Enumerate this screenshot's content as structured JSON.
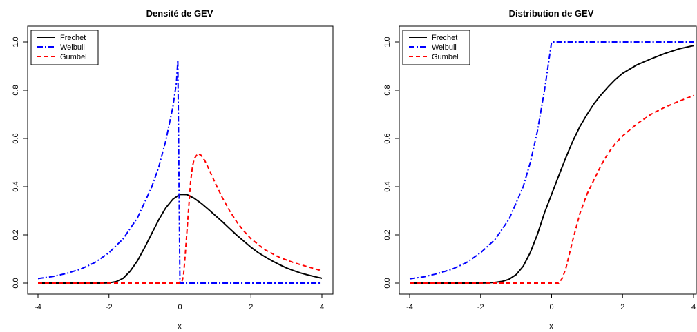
{
  "chart_data": [
    {
      "type": "line",
      "title": "Densité de GEV",
      "xlabel": "x",
      "ylabel": "",
      "xlim": [
        -4,
        4
      ],
      "ylim": [
        0,
        1.0
      ],
      "x_ticks": [
        "-4",
        "-2",
        "0",
        "2",
        "4"
      ],
      "y_ticks": [
        "0.0",
        "0.2",
        "0.4",
        "0.6",
        "0.8",
        "1.0"
      ],
      "grid": false,
      "legend": "top-left",
      "series": [
        {
          "name": "Frechet",
          "color": "#000000",
          "dash": "solid",
          "points": [
            [
              -4,
              0.0
            ],
            [
              -2.2,
              0.0
            ],
            [
              -2.0,
              0.001
            ],
            [
              -1.8,
              0.006
            ],
            [
              -1.6,
              0.02
            ],
            [
              -1.4,
              0.05
            ],
            [
              -1.2,
              0.092
            ],
            [
              -1.0,
              0.146
            ],
            [
              -0.8,
              0.204
            ],
            [
              -0.6,
              0.262
            ],
            [
              -0.4,
              0.312
            ],
            [
              -0.2,
              0.348
            ],
            [
              0.0,
              0.368
            ],
            [
              0.2,
              0.367
            ],
            [
              0.4,
              0.352
            ],
            [
              0.6,
              0.331
            ],
            [
              0.8,
              0.306
            ],
            [
              1.0,
              0.28
            ],
            [
              1.2,
              0.254
            ],
            [
              1.4,
              0.226
            ],
            [
              1.6,
              0.199
            ],
            [
              1.8,
              0.174
            ],
            [
              2.0,
              0.149
            ],
            [
              2.2,
              0.127
            ],
            [
              2.4,
              0.109
            ],
            [
              2.6,
              0.092
            ],
            [
              2.8,
              0.077
            ],
            [
              3.0,
              0.063
            ],
            [
              3.2,
              0.052
            ],
            [
              3.4,
              0.042
            ],
            [
              3.6,
              0.034
            ],
            [
              3.8,
              0.027
            ],
            [
              4.0,
              0.02
            ]
          ]
        },
        {
          "name": "Weibull",
          "color": "#0000ff",
          "dash": "dashdot",
          "points": [
            [
              -4,
              0.019
            ],
            [
              -3.6,
              0.027
            ],
            [
              -3.2,
              0.04
            ],
            [
              -2.8,
              0.058
            ],
            [
              -2.4,
              0.085
            ],
            [
              -2.0,
              0.126
            ],
            [
              -1.6,
              0.184
            ],
            [
              -1.2,
              0.27
            ],
            [
              -0.8,
              0.397
            ],
            [
              -0.6,
              0.48
            ],
            [
              -0.4,
              0.59
            ],
            [
              -0.2,
              0.73
            ],
            [
              -0.1,
              0.83
            ],
            [
              -0.06,
              0.925
            ],
            [
              0.0,
              0.0
            ],
            [
              4.0,
              0.0
            ]
          ]
        },
        {
          "name": "Gumbel",
          "color": "#ff0000",
          "dash": "dashed",
          "points": [
            [
              -4,
              0.0
            ],
            [
              0.0,
              0.0
            ],
            [
              0.05,
              0.003
            ],
            [
              0.1,
              0.03
            ],
            [
              0.15,
              0.12
            ],
            [
              0.2,
              0.22
            ],
            [
              0.25,
              0.32
            ],
            [
              0.3,
              0.42
            ],
            [
              0.35,
              0.48
            ],
            [
              0.4,
              0.515
            ],
            [
              0.5,
              0.537
            ],
            [
              0.6,
              0.53
            ],
            [
              0.7,
              0.508
            ],
            [
              0.8,
              0.478
            ],
            [
              1.0,
              0.413
            ],
            [
              1.2,
              0.353
            ],
            [
              1.4,
              0.3
            ],
            [
              1.6,
              0.254
            ],
            [
              1.8,
              0.216
            ],
            [
              2.0,
              0.184
            ],
            [
              2.4,
              0.138
            ],
            [
              2.8,
              0.107
            ],
            [
              3.2,
              0.085
            ],
            [
              3.6,
              0.068
            ],
            [
              4.0,
              0.051
            ]
          ]
        }
      ]
    },
    {
      "type": "line",
      "title": "Distribution de GEV",
      "xlabel": "x",
      "ylabel": "",
      "xlim": [
        -4,
        4
      ],
      "ylim": [
        0,
        1.0
      ],
      "x_ticks": [
        "-4",
        "-2",
        "0",
        "2",
        "4"
      ],
      "y_ticks": [
        "0.0",
        "0.2",
        "0.4",
        "0.6",
        "0.8",
        "1.0"
      ],
      "grid": false,
      "legend": "top-left",
      "series": [
        {
          "name": "Frechet",
          "color": "#000000",
          "dash": "solid",
          "points": [
            [
              -4,
              0.0
            ],
            [
              -2.0,
              0.0
            ],
            [
              -1.8,
              0.001
            ],
            [
              -1.6,
              0.003
            ],
            [
              -1.4,
              0.007
            ],
            [
              -1.2,
              0.016
            ],
            [
              -1.0,
              0.035
            ],
            [
              -0.8,
              0.07
            ],
            [
              -0.6,
              0.127
            ],
            [
              -0.4,
              0.202
            ],
            [
              -0.2,
              0.292
            ],
            [
              0.0,
              0.368
            ],
            [
              0.2,
              0.445
            ],
            [
              0.4,
              0.52
            ],
            [
              0.6,
              0.59
            ],
            [
              0.8,
              0.65
            ],
            [
              1.0,
              0.7
            ],
            [
              1.2,
              0.745
            ],
            [
              1.4,
              0.782
            ],
            [
              1.6,
              0.815
            ],
            [
              1.8,
              0.845
            ],
            [
              2.0,
              0.87
            ],
            [
              2.4,
              0.905
            ],
            [
              2.8,
              0.93
            ],
            [
              3.2,
              0.953
            ],
            [
              3.6,
              0.972
            ],
            [
              4.0,
              0.985
            ]
          ]
        },
        {
          "name": "Weibull",
          "color": "#0000ff",
          "dash": "dashdot",
          "points": [
            [
              -4,
              0.018
            ],
            [
              -3.6,
              0.026
            ],
            [
              -3.2,
              0.04
            ],
            [
              -2.8,
              0.058
            ],
            [
              -2.4,
              0.085
            ],
            [
              -2.0,
              0.126
            ],
            [
              -1.6,
              0.18
            ],
            [
              -1.2,
              0.265
            ],
            [
              -0.8,
              0.4
            ],
            [
              -0.6,
              0.5
            ],
            [
              -0.4,
              0.63
            ],
            [
              -0.2,
              0.8
            ],
            [
              0.0,
              1.0
            ],
            [
              4.0,
              1.0
            ]
          ]
        },
        {
          "name": "Gumbel",
          "color": "#ff0000",
          "dash": "dashed",
          "points": [
            [
              -4,
              0.0
            ],
            [
              0.2,
              0.0
            ],
            [
              0.3,
              0.02
            ],
            [
              0.4,
              0.06
            ],
            [
              0.5,
              0.12
            ],
            [
              0.6,
              0.18
            ],
            [
              0.7,
              0.235
            ],
            [
              0.8,
              0.29
            ],
            [
              1.0,
              0.37
            ],
            [
              1.2,
              0.43
            ],
            [
              1.4,
              0.49
            ],
            [
              1.6,
              0.54
            ],
            [
              1.8,
              0.58
            ],
            [
              2.0,
              0.61
            ],
            [
              2.4,
              0.66
            ],
            [
              2.8,
              0.7
            ],
            [
              3.2,
              0.73
            ],
            [
              3.6,
              0.755
            ],
            [
              4.0,
              0.778
            ]
          ]
        }
      ]
    }
  ]
}
